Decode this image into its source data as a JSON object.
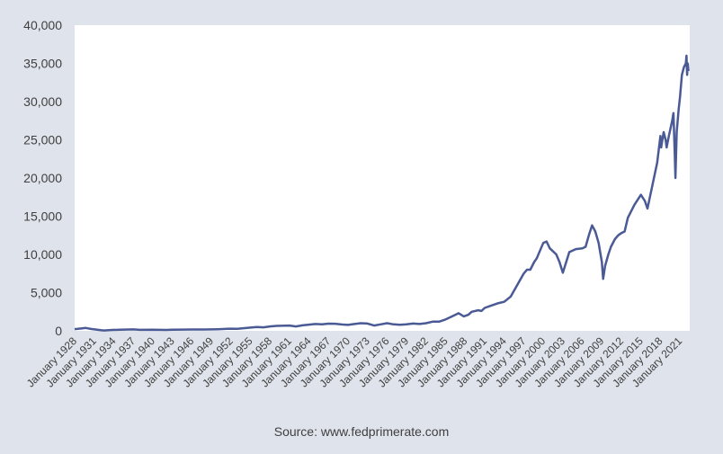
{
  "chart_data": {
    "type": "line",
    "title": "",
    "xlabel": "",
    "ylabel": "",
    "ylim": [
      0,
      40000
    ],
    "grid": false,
    "legend": "none",
    "x_tick_labels": [
      "January 1928",
      "January 1931",
      "January 1934",
      "January 1937",
      "January 1940",
      "January 1943",
      "January 1946",
      "January 1949",
      "January 1952",
      "January 1955",
      "January 1958",
      "January 1961",
      "January 1964",
      "January 1967",
      "January 1970",
      "January 1973",
      "January 1976",
      "January 1979",
      "January 1982",
      "January 1985",
      "January 1988",
      "January 1991",
      "January 1994",
      "January 1997",
      "January 2000",
      "January 2003",
      "January 2006",
      "January 2009",
      "January 2012",
      "January 2015",
      "January 2018",
      "January 2021"
    ],
    "y_tick_labels": [
      "0",
      "5,000",
      "10,000",
      "15,000",
      "20,000",
      "25,000",
      "30,000",
      "35,000",
      "40,000"
    ],
    "y_ticks": [
      0,
      5000,
      10000,
      15000,
      20000,
      25000,
      30000,
      35000,
      40000
    ],
    "x_range": [
      1928,
      2022.5
    ],
    "series": [
      {
        "color": "#4a5a94",
        "x": [
          1928,
          1929,
          1929.7,
          1930.5,
          1932,
          1932.5,
          1933.5,
          1935,
          1937,
          1938,
          1940,
          1942,
          1943,
          1946,
          1948,
          1950,
          1952,
          1953,
          1955,
          1956,
          1957,
          1958,
          1959,
          1961,
          1962,
          1963,
          1965,
          1966,
          1967,
          1968,
          1969,
          1970,
          1971,
          1972,
          1973,
          1974,
          1975,
          1976,
          1977,
          1978,
          1979,
          1980,
          1981,
          1982,
          1983,
          1984,
          1985,
          1986,
          1987,
          1987.8,
          1988.5,
          1989,
          1990,
          1990.5,
          1991,
          1992,
          1993,
          1994,
          1995,
          1996,
          1997,
          1997.5,
          1998,
          1998.6,
          1999,
          2000,
          2000.5,
          2001,
          2002,
          2002.5,
          2003,
          2004,
          2005,
          2006,
          2006.5,
          2007,
          2007.5,
          2008,
          2008.5,
          2009,
          2009.2,
          2009.5,
          2010,
          2010.4,
          2011,
          2011.5,
          2012,
          2012.5,
          2013,
          2014,
          2015,
          2015.6,
          2016,
          2016.5,
          2017,
          2017.5,
          2018,
          2018.1,
          2018.5,
          2018.8,
          2018.95,
          2019.3,
          2019.8,
          2020,
          2020.2,
          2020.3,
          2020.5,
          2020.8,
          2021,
          2021.3,
          2021.6,
          2021.9,
          2022,
          2022.1,
          2022.2,
          2022.3
        ],
        "y": [
          220,
          300,
          380,
          250,
          80,
          50,
          110,
          150,
          190,
          130,
          150,
          120,
          150,
          180,
          180,
          210,
          280,
          260,
          420,
          510,
          460,
          580,
          650,
          690,
          580,
          720,
          900,
          850,
          940,
          930,
          830,
          780,
          900,
          1000,
          950,
          700,
          850,
          1000,
          850,
          800,
          850,
          950,
          900,
          1000,
          1200,
          1200,
          1500,
          1900,
          2300,
          1900,
          2100,
          2500,
          2700,
          2600,
          3000,
          3300,
          3600,
          3800,
          4500,
          6000,
          7500,
          8000,
          8000,
          9000,
          9500,
          11500,
          11700,
          10800,
          10000,
          9000,
          7600,
          10300,
          10700,
          10800,
          11000,
          12500,
          13800,
          13000,
          11500,
          9000,
          6800,
          8500,
          10000,
          11000,
          12000,
          12500,
          12800,
          13000,
          14800,
          16500,
          17800,
          17000,
          16000,
          18000,
          20000,
          22000,
          25500,
          24000,
          26000,
          25000,
          24000,
          25500,
          27500,
          28500,
          23000,
          20000,
          26000,
          29000,
          30500,
          33500,
          34500,
          35000,
          36000,
          33500,
          35000,
          34000
        ]
      }
    ]
  },
  "source": "Source: www.fedprimerate.com"
}
